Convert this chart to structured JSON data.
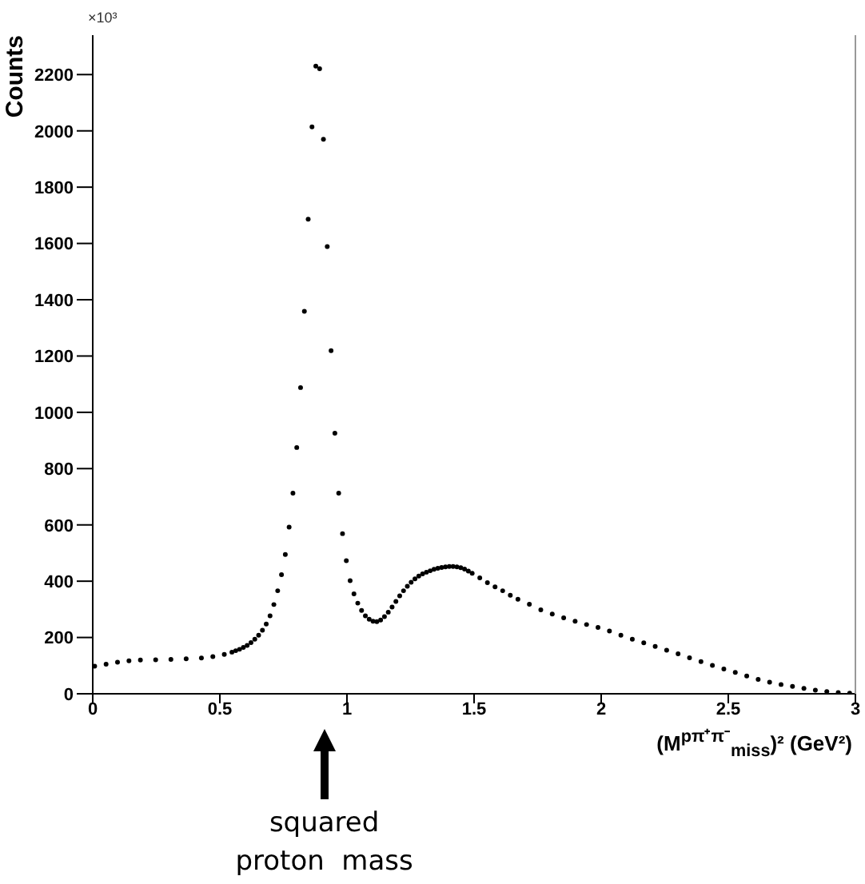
{
  "chart_data": {
    "type": "scatter",
    "xlabel": "(M$^{pπ⁺π⁻}$$_{miss}$)² (GeV²)",
    "ylabel": "Counts",
    "annotations": [
      "×10³",
      "squared proton  mass"
    ],
    "xlim": [
      0,
      3
    ],
    "xticks": [
      0,
      0.5,
      1,
      1.5,
      2,
      2.5,
      3
    ],
    "ylim": [
      0,
      2340
    ],
    "yticks": [
      0,
      200,
      400,
      600,
      800,
      1000,
      1200,
      1400,
      1600,
      1800,
      2000,
      2200
    ],
    "marker": "circle",
    "grid": false,
    "legend": false,
    "series": [
      {
        "color": "#000000",
        "x": [
          0.0075,
          0.0525,
          0.0975,
          0.1425,
          0.1875,
          0.2475,
          0.3075,
          0.3675,
          0.4275,
          0.4725,
          0.5175,
          0.5475,
          0.5625,
          0.5775,
          0.5925,
          0.6075,
          0.6225,
          0.6375,
          0.6525,
          0.6675,
          0.6825,
          0.6975,
          0.7125,
          0.7275,
          0.7425,
          0.7575,
          0.7725,
          0.7875,
          0.8025,
          0.8175,
          0.8325,
          0.8475,
          0.8625,
          0.8775,
          0.8925,
          0.9075,
          0.9225,
          0.9375,
          0.9525,
          0.9675,
          0.9825,
          0.9975,
          1.0125,
          1.0275,
          1.0425,
          1.0575,
          1.0725,
          1.0875,
          1.1025,
          1.1175,
          1.1325,
          1.1475,
          1.1625,
          1.1775,
          1.1925,
          1.2075,
          1.2225,
          1.2375,
          1.2525,
          1.2675,
          1.2825,
          1.2975,
          1.3125,
          1.3275,
          1.3425,
          1.3575,
          1.3725,
          1.3875,
          1.4025,
          1.4175,
          1.4325,
          1.4475,
          1.4625,
          1.4775,
          1.4925,
          1.5225,
          1.5525,
          1.5825,
          1.6125,
          1.6425,
          1.6725,
          1.7175,
          1.7625,
          1.8075,
          1.8525,
          1.8975,
          1.9425,
          1.9875,
          2.0325,
          2.0775,
          2.1225,
          2.1675,
          2.2125,
          2.2575,
          2.3025,
          2.3475,
          2.3925,
          2.4375,
          2.4825,
          2.5275,
          2.5725,
          2.6175,
          2.6625,
          2.7075,
          2.7525,
          2.7975,
          2.8425,
          2.8875,
          2.9325,
          2.9775
        ],
        "values": [
          98,
          105,
          112,
          117,
          120,
          121,
          122,
          124,
          127,
          132,
          140,
          148,
          153,
          158,
          165,
          172,
          182,
          194,
          208,
          226,
          248,
          277,
          317,
          366,
          423,
          495,
          592,
          713,
          875,
          1088,
          1359,
          1686,
          2014,
          2230,
          2221,
          1970,
          1589,
          1219,
          926,
          713,
          569,
          473,
          402,
          355,
          322,
          296,
          277,
          265,
          258,
          256,
          262,
          274,
          290,
          308,
          328,
          348,
          366,
          382,
          396,
          408,
          418,
          426,
          432,
          437,
          442,
          446,
          449,
          451,
          452,
          452,
          451,
          448,
          443,
          436,
          428,
          412,
          395,
          380,
          366,
          350,
          336,
          318,
          298,
          283,
          270,
          258,
          246,
          236,
          223,
          208,
          194,
          181,
          168,
          155,
          142,
          128,
          114,
          101,
          88,
          76,
          63,
          51,
          41,
          33,
          26,
          19,
          13,
          8,
          4,
          2
        ]
      }
    ]
  }
}
